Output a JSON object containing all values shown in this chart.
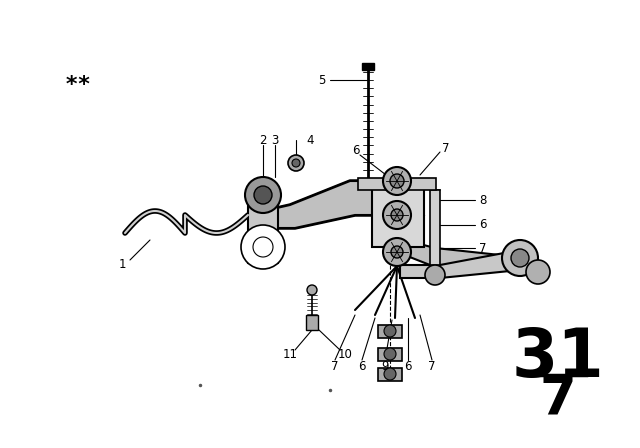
{
  "background_color": "#ffffff",
  "page_number": "31",
  "page_sub": "7",
  "stars": "**",
  "line_color": "#000000",
  "text_color": "#000000",
  "label_fontsize": 8.5,
  "stars_fontsize": 16,
  "pagenum_fontsize": 48,
  "pagenum_sub_fontsize": 38,
  "fig_width": 6.4,
  "fig_height": 4.48,
  "dpi": 100
}
